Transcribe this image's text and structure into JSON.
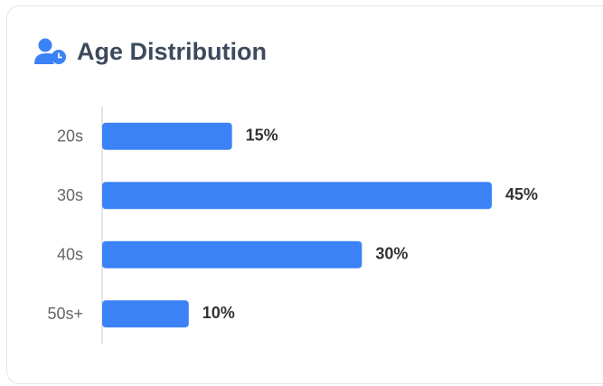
{
  "chart_data": {
    "type": "bar",
    "orientation": "horizontal",
    "title": "Age Distribution",
    "categories": [
      "20s",
      "30s",
      "40s",
      "50s+"
    ],
    "values": [
      15,
      45,
      30,
      10
    ],
    "value_labels": [
      "15%",
      "45%",
      "30%",
      "10%"
    ],
    "color": "#3b82f6"
  }
}
